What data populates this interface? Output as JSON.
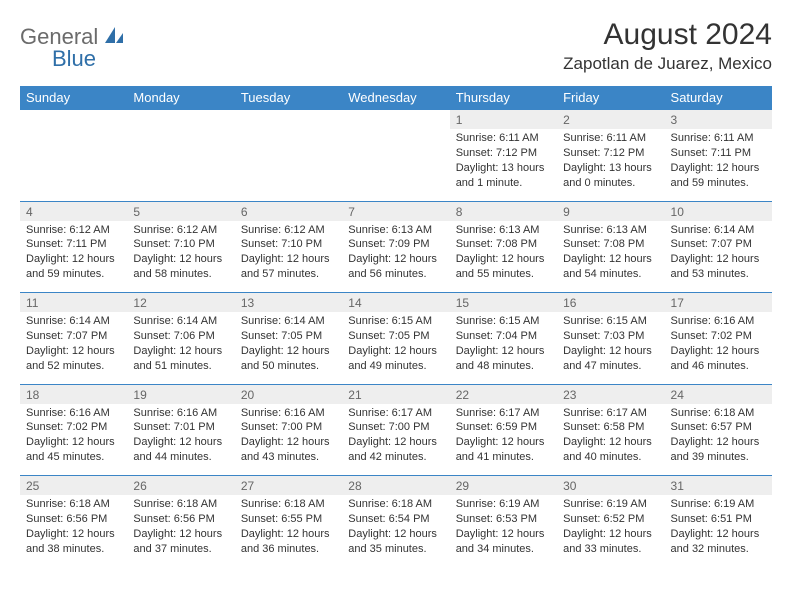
{
  "brand": {
    "part1": "General",
    "part2": "Blue"
  },
  "title": "August 2024",
  "location": "Zapotlan de Juarez, Mexico",
  "colors": {
    "header_bg": "#3b85c6",
    "header_text": "#ffffff",
    "num_bg": "#eeeeee",
    "num_text": "#666666",
    "body_text": "#333333",
    "brand_gray": "#6b6b6b",
    "brand_blue": "#2f6fa8"
  },
  "day_headers": [
    "Sunday",
    "Monday",
    "Tuesday",
    "Wednesday",
    "Thursday",
    "Friday",
    "Saturday"
  ],
  "weeks": [
    [
      null,
      null,
      null,
      null,
      {
        "num": "1",
        "sunrise": "6:11 AM",
        "sunset": "7:12 PM",
        "daylight": "13 hours and 1 minute."
      },
      {
        "num": "2",
        "sunrise": "6:11 AM",
        "sunset": "7:12 PM",
        "daylight": "13 hours and 0 minutes."
      },
      {
        "num": "3",
        "sunrise": "6:11 AM",
        "sunset": "7:11 PM",
        "daylight": "12 hours and 59 minutes."
      }
    ],
    [
      {
        "num": "4",
        "sunrise": "6:12 AM",
        "sunset": "7:11 PM",
        "daylight": "12 hours and 59 minutes."
      },
      {
        "num": "5",
        "sunrise": "6:12 AM",
        "sunset": "7:10 PM",
        "daylight": "12 hours and 58 minutes."
      },
      {
        "num": "6",
        "sunrise": "6:12 AM",
        "sunset": "7:10 PM",
        "daylight": "12 hours and 57 minutes."
      },
      {
        "num": "7",
        "sunrise": "6:13 AM",
        "sunset": "7:09 PM",
        "daylight": "12 hours and 56 minutes."
      },
      {
        "num": "8",
        "sunrise": "6:13 AM",
        "sunset": "7:08 PM",
        "daylight": "12 hours and 55 minutes."
      },
      {
        "num": "9",
        "sunrise": "6:13 AM",
        "sunset": "7:08 PM",
        "daylight": "12 hours and 54 minutes."
      },
      {
        "num": "10",
        "sunrise": "6:14 AM",
        "sunset": "7:07 PM",
        "daylight": "12 hours and 53 minutes."
      }
    ],
    [
      {
        "num": "11",
        "sunrise": "6:14 AM",
        "sunset": "7:07 PM",
        "daylight": "12 hours and 52 minutes."
      },
      {
        "num": "12",
        "sunrise": "6:14 AM",
        "sunset": "7:06 PM",
        "daylight": "12 hours and 51 minutes."
      },
      {
        "num": "13",
        "sunrise": "6:14 AM",
        "sunset": "7:05 PM",
        "daylight": "12 hours and 50 minutes."
      },
      {
        "num": "14",
        "sunrise": "6:15 AM",
        "sunset": "7:05 PM",
        "daylight": "12 hours and 49 minutes."
      },
      {
        "num": "15",
        "sunrise": "6:15 AM",
        "sunset": "7:04 PM",
        "daylight": "12 hours and 48 minutes."
      },
      {
        "num": "16",
        "sunrise": "6:15 AM",
        "sunset": "7:03 PM",
        "daylight": "12 hours and 47 minutes."
      },
      {
        "num": "17",
        "sunrise": "6:16 AM",
        "sunset": "7:02 PM",
        "daylight": "12 hours and 46 minutes."
      }
    ],
    [
      {
        "num": "18",
        "sunrise": "6:16 AM",
        "sunset": "7:02 PM",
        "daylight": "12 hours and 45 minutes."
      },
      {
        "num": "19",
        "sunrise": "6:16 AM",
        "sunset": "7:01 PM",
        "daylight": "12 hours and 44 minutes."
      },
      {
        "num": "20",
        "sunrise": "6:16 AM",
        "sunset": "7:00 PM",
        "daylight": "12 hours and 43 minutes."
      },
      {
        "num": "21",
        "sunrise": "6:17 AM",
        "sunset": "7:00 PM",
        "daylight": "12 hours and 42 minutes."
      },
      {
        "num": "22",
        "sunrise": "6:17 AM",
        "sunset": "6:59 PM",
        "daylight": "12 hours and 41 minutes."
      },
      {
        "num": "23",
        "sunrise": "6:17 AM",
        "sunset": "6:58 PM",
        "daylight": "12 hours and 40 minutes."
      },
      {
        "num": "24",
        "sunrise": "6:18 AM",
        "sunset": "6:57 PM",
        "daylight": "12 hours and 39 minutes."
      }
    ],
    [
      {
        "num": "25",
        "sunrise": "6:18 AM",
        "sunset": "6:56 PM",
        "daylight": "12 hours and 38 minutes."
      },
      {
        "num": "26",
        "sunrise": "6:18 AM",
        "sunset": "6:56 PM",
        "daylight": "12 hours and 37 minutes."
      },
      {
        "num": "27",
        "sunrise": "6:18 AM",
        "sunset": "6:55 PM",
        "daylight": "12 hours and 36 minutes."
      },
      {
        "num": "28",
        "sunrise": "6:18 AM",
        "sunset": "6:54 PM",
        "daylight": "12 hours and 35 minutes."
      },
      {
        "num": "29",
        "sunrise": "6:19 AM",
        "sunset": "6:53 PM",
        "daylight": "12 hours and 34 minutes."
      },
      {
        "num": "30",
        "sunrise": "6:19 AM",
        "sunset": "6:52 PM",
        "daylight": "12 hours and 33 minutes."
      },
      {
        "num": "31",
        "sunrise": "6:19 AM",
        "sunset": "6:51 PM",
        "daylight": "12 hours and 32 minutes."
      }
    ]
  ],
  "labels": {
    "sunrise": "Sunrise:",
    "sunset": "Sunset:",
    "daylight": "Daylight:"
  }
}
